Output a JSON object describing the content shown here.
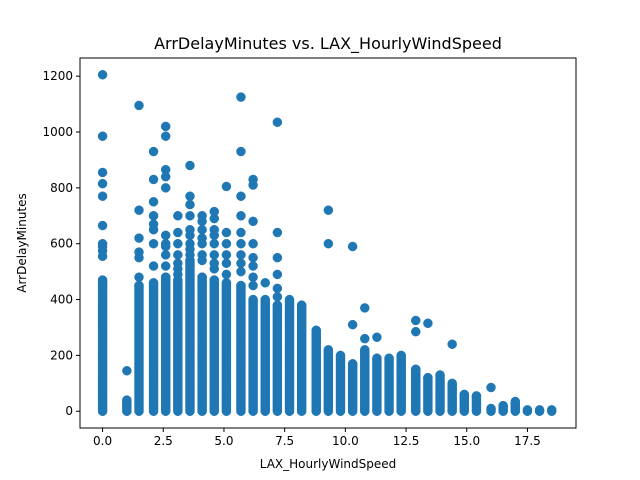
{
  "chart_data": {
    "type": "scatter",
    "title": "ArrDelayMinutes vs. LAX_HourlyWindSpeed",
    "xlabel": "LAX_HourlyWindSpeed",
    "ylabel": "ArrDelayMinutes",
    "xlim": [
      -0.93,
      19.5
    ],
    "ylim": [
      -60,
      1265
    ],
    "xticks": [
      0.0,
      2.5,
      5.0,
      7.5,
      10.0,
      12.5,
      15.0,
      17.5
    ],
    "xtick_labels": [
      "0.0",
      "2.5",
      "5.0",
      "7.5",
      "10.0",
      "12.5",
      "15.0",
      "17.5"
    ],
    "yticks": [
      0,
      200,
      400,
      600,
      800,
      1000,
      1200
    ],
    "ytick_labels": [
      "0",
      "200",
      "400",
      "600",
      "800",
      "1000",
      "1200"
    ],
    "grid": false,
    "legend": "none",
    "marker_color": "#1f77b4",
    "series": [
      {
        "columns": [
          {
            "x": 0.0,
            "max": 470,
            "outliers": [
              1205,
              985,
              855,
              815,
              770,
              665,
              600,
              590,
              575,
              555
            ]
          },
          {
            "x": 1.0,
            "max": 40,
            "outliers": [
              145
            ]
          },
          {
            "x": 1.5,
            "max": 450,
            "outliers": [
              1095,
              720,
              620,
              570,
              550,
              480
            ]
          },
          {
            "x": 2.1,
            "max": 460,
            "outliers": [
              930,
              830,
              750,
              700,
              670,
              650,
              600,
              520
            ]
          },
          {
            "x": 2.6,
            "max": 480,
            "outliers": [
              1020,
              985,
              865,
              840,
              800,
              630,
              600,
              590,
              560,
              520
            ]
          },
          {
            "x": 3.1,
            "max": 470,
            "outliers": [
              700,
              640,
              600,
              560,
              530,
              510,
              490
            ]
          },
          {
            "x": 3.6,
            "max": 540,
            "outliers": [
              880,
              770,
              740,
              700,
              650,
              630,
              600,
              580,
              560
            ]
          },
          {
            "x": 4.1,
            "max": 480,
            "outliers": [
              700,
              680,
              650,
              620,
              600,
              560,
              540
            ]
          },
          {
            "x": 4.6,
            "max": 470,
            "outliers": [
              715,
              690,
              650,
              630,
              600,
              560,
              530,
              510
            ]
          },
          {
            "x": 5.1,
            "max": 460,
            "outliers": [
              805,
              640,
              600,
              560,
              530,
              490
            ]
          },
          {
            "x": 5.7,
            "max": 450,
            "outliers": [
              1125,
              930,
              770,
              700,
              640,
              600,
              560,
              530,
              500
            ]
          },
          {
            "x": 6.2,
            "max": 400,
            "outliers": [
              830,
              810,
              680,
              600,
              550,
              520,
              480,
              450
            ]
          },
          {
            "x": 6.7,
            "max": 400,
            "outliers": [
              460
            ]
          },
          {
            "x": 7.2,
            "max": 380,
            "outliers": [
              1035,
              640,
              550,
              490,
              440,
              410
            ]
          },
          {
            "x": 7.7,
            "max": 400,
            "outliers": []
          },
          {
            "x": 8.2,
            "max": 380,
            "outliers": []
          },
          {
            "x": 8.8,
            "max": 290,
            "outliers": []
          },
          {
            "x": 9.3,
            "max": 220,
            "outliers": [
              720,
              600
            ]
          },
          {
            "x": 9.8,
            "max": 200,
            "outliers": []
          },
          {
            "x": 10.3,
            "max": 170,
            "outliers": [
              590,
              310
            ]
          },
          {
            "x": 10.8,
            "max": 220,
            "outliers": [
              370,
              260
            ]
          },
          {
            "x": 11.3,
            "max": 190,
            "outliers": [
              265
            ]
          },
          {
            "x": 11.8,
            "max": 190,
            "outliers": []
          },
          {
            "x": 12.3,
            "max": 200,
            "outliers": []
          },
          {
            "x": 12.9,
            "max": 150,
            "outliers": [
              325,
              285
            ]
          },
          {
            "x": 13.4,
            "max": 120,
            "outliers": [
              315
            ]
          },
          {
            "x": 13.9,
            "max": 130,
            "outliers": []
          },
          {
            "x": 14.4,
            "max": 100,
            "outliers": [
              240
            ]
          },
          {
            "x": 14.9,
            "max": 60,
            "outliers": []
          },
          {
            "x": 15.4,
            "max": 55,
            "outliers": []
          },
          {
            "x": 16.0,
            "max": 10,
            "outliers": [
              85
            ]
          },
          {
            "x": 16.5,
            "max": 20,
            "outliers": []
          },
          {
            "x": 17.0,
            "max": 35,
            "outliers": []
          },
          {
            "x": 17.5,
            "max": 5,
            "outliers": []
          },
          {
            "x": 18.0,
            "max": 5,
            "outliers": []
          },
          {
            "x": 18.5,
            "max": 5,
            "outliers": []
          }
        ]
      }
    ]
  }
}
